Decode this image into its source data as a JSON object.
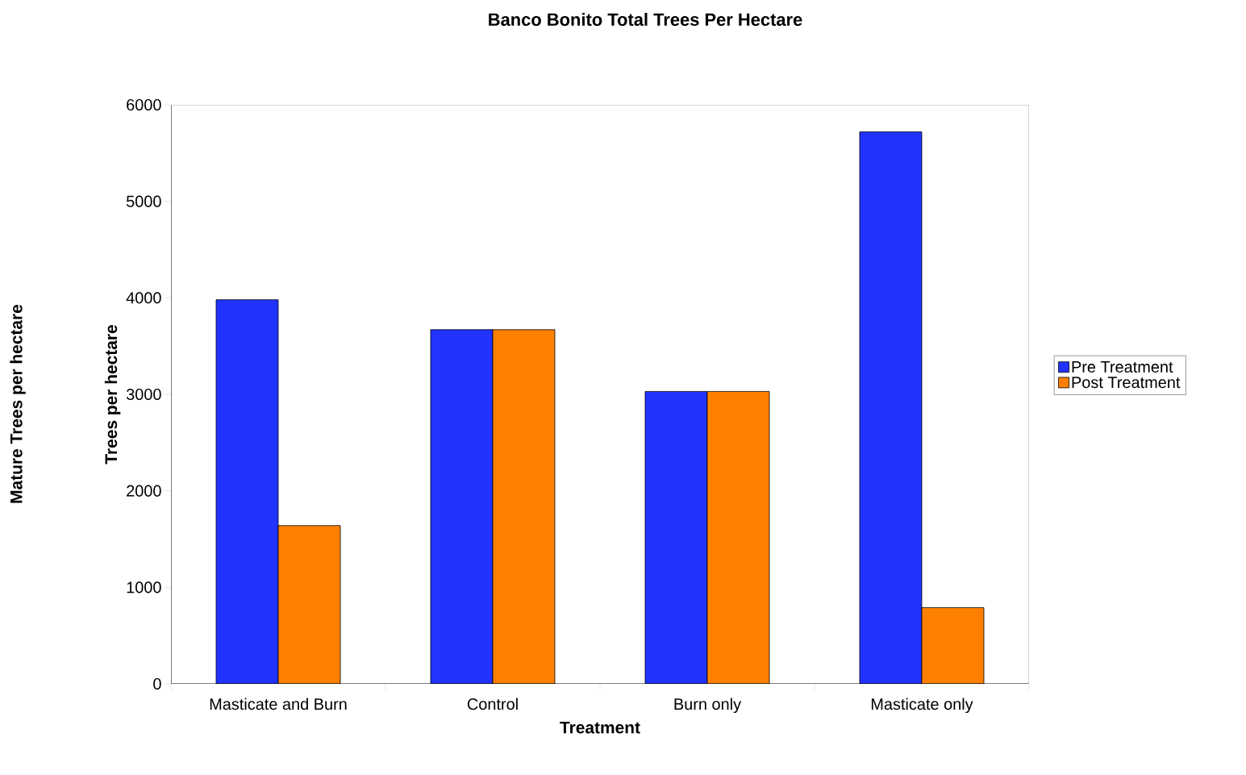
{
  "chart_data": {
    "type": "bar",
    "title": "Banco Bonito Total Trees Per Hectare",
    "xlabel": "Treatment",
    "ylabel": "Trees per hectare",
    "annotations": [
      "Mature Trees per hectare"
    ],
    "categories": [
      "Masticate and Burn",
      "Control",
      "Burn only",
      "Masticate only"
    ],
    "series": [
      {
        "name": "Pre Treatment",
        "color": "#2233ff",
        "values": [
          3980,
          3670,
          3030,
          5720
        ]
      },
      {
        "name": "Post Treatment",
        "color": "#ff8000",
        "values": [
          1640,
          3670,
          3030,
          790
        ]
      }
    ],
    "ylim": [
      0,
      6000
    ],
    "yticks": [
      0,
      1000,
      2000,
      3000,
      4000,
      5000,
      6000
    ],
    "legend": "right",
    "grid": false
  }
}
